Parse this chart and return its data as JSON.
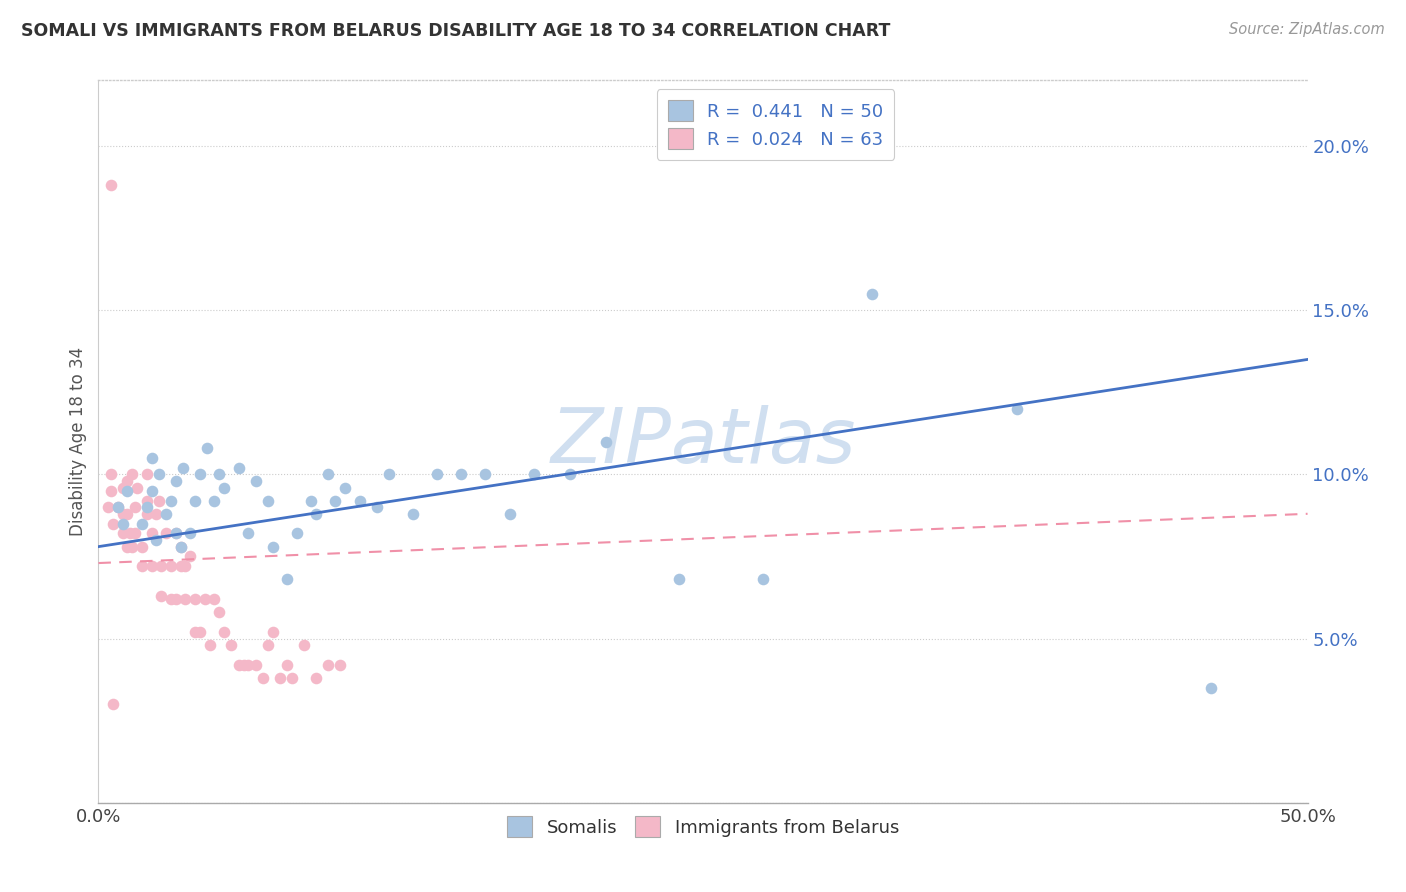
{
  "title": "SOMALI VS IMMIGRANTS FROM BELARUS DISABILITY AGE 18 TO 34 CORRELATION CHART",
  "source": "Source: ZipAtlas.com",
  "ylabel": "Disability Age 18 to 34",
  "xlim": [
    0.0,
    0.5
  ],
  "ylim": [
    0.0,
    0.22
  ],
  "xticks": [
    0.0,
    0.1,
    0.2,
    0.3,
    0.4,
    0.5
  ],
  "yticks": [
    0.0,
    0.05,
    0.1,
    0.15,
    0.2
  ],
  "somali_color": "#a8c4e0",
  "belarus_color": "#f4b8c8",
  "somali_line_color": "#4472c4",
  "belarus_line_color": "#f090a8",
  "watermark": "ZIPatlas",
  "watermark_color": "#d0dff0",
  "somali_line_start_y": 0.078,
  "somali_line_end_y": 0.135,
  "belarus_line_start_y": 0.073,
  "belarus_line_end_y": 0.088,
  "somali_x": [
    0.008,
    0.01,
    0.012,
    0.018,
    0.02,
    0.022,
    0.022,
    0.024,
    0.025,
    0.028,
    0.03,
    0.032,
    0.032,
    0.034,
    0.035,
    0.038,
    0.04,
    0.042,
    0.045,
    0.048,
    0.05,
    0.052,
    0.058,
    0.062,
    0.065,
    0.07,
    0.072,
    0.078,
    0.082,
    0.088,
    0.09,
    0.095,
    0.098,
    0.102,
    0.108,
    0.115,
    0.12,
    0.13,
    0.14,
    0.15,
    0.16,
    0.17,
    0.18,
    0.195,
    0.21,
    0.24,
    0.275,
    0.32,
    0.38,
    0.46
  ],
  "somali_y": [
    0.09,
    0.085,
    0.095,
    0.085,
    0.09,
    0.095,
    0.105,
    0.08,
    0.1,
    0.088,
    0.092,
    0.098,
    0.082,
    0.078,
    0.102,
    0.082,
    0.092,
    0.1,
    0.108,
    0.092,
    0.1,
    0.096,
    0.102,
    0.082,
    0.098,
    0.092,
    0.078,
    0.068,
    0.082,
    0.092,
    0.088,
    0.1,
    0.092,
    0.096,
    0.092,
    0.09,
    0.1,
    0.088,
    0.1,
    0.1,
    0.1,
    0.088,
    0.1,
    0.1,
    0.11,
    0.068,
    0.068,
    0.155,
    0.12,
    0.035
  ],
  "belarus_x": [
    0.004,
    0.005,
    0.005,
    0.006,
    0.008,
    0.01,
    0.01,
    0.01,
    0.012,
    0.012,
    0.012,
    0.013,
    0.014,
    0.014,
    0.015,
    0.015,
    0.016,
    0.018,
    0.018,
    0.02,
    0.02,
    0.02,
    0.022,
    0.022,
    0.024,
    0.025,
    0.026,
    0.026,
    0.028,
    0.03,
    0.03,
    0.032,
    0.032,
    0.034,
    0.034,
    0.036,
    0.036,
    0.038,
    0.04,
    0.04,
    0.042,
    0.044,
    0.046,
    0.048,
    0.05,
    0.052,
    0.055,
    0.058,
    0.06,
    0.062,
    0.065,
    0.068,
    0.07,
    0.072,
    0.075,
    0.078,
    0.08,
    0.085,
    0.09,
    0.095,
    0.1,
    0.005,
    0.006
  ],
  "belarus_y": [
    0.09,
    0.095,
    0.1,
    0.085,
    0.09,
    0.082,
    0.088,
    0.096,
    0.078,
    0.098,
    0.088,
    0.082,
    0.1,
    0.078,
    0.082,
    0.09,
    0.096,
    0.072,
    0.078,
    0.088,
    0.092,
    0.1,
    0.072,
    0.082,
    0.088,
    0.092,
    0.063,
    0.072,
    0.082,
    0.062,
    0.072,
    0.082,
    0.062,
    0.072,
    0.078,
    0.062,
    0.072,
    0.075,
    0.052,
    0.062,
    0.052,
    0.062,
    0.048,
    0.062,
    0.058,
    0.052,
    0.048,
    0.042,
    0.042,
    0.042,
    0.042,
    0.038,
    0.048,
    0.052,
    0.038,
    0.042,
    0.038,
    0.048,
    0.038,
    0.042,
    0.042,
    0.188,
    0.03
  ]
}
